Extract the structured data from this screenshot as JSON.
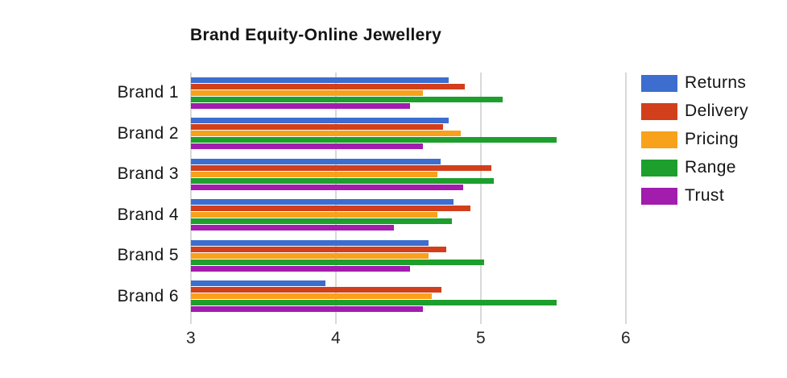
{
  "page": {
    "background": "#ffffff"
  },
  "chart_data": {
    "type": "bar",
    "orientation": "horizontal",
    "title": "Brand Equity-Online Jewellery",
    "xlabel": "",
    "ylabel": "",
    "xlim": [
      3,
      6
    ],
    "xticks": [
      "3",
      "4",
      "5",
      "6"
    ],
    "grid": "vertical",
    "legend_position": "right",
    "categories": [
      "Brand 1",
      "Brand 2",
      "Brand 3",
      "Brand 4",
      "Brand 5",
      "Brand 6"
    ],
    "series": [
      {
        "name": "Returns",
        "color": "#3D6ECF",
        "values": [
          4.78,
          4.78,
          4.72,
          4.81,
          4.64,
          3.93
        ]
      },
      {
        "name": "Delivery",
        "color": "#D23F1B",
        "values": [
          4.89,
          4.74,
          5.07,
          4.93,
          4.76,
          4.73
        ]
      },
      {
        "name": "Pricing",
        "color": "#F8A11B",
        "values": [
          4.6,
          4.86,
          4.7,
          4.7,
          4.64,
          4.66
        ]
      },
      {
        "name": "Range",
        "color": "#1D9F2D",
        "values": [
          5.15,
          5.52,
          5.09,
          4.8,
          5.02,
          5.52
        ]
      },
      {
        "name": "Trust",
        "color": "#A21CAE",
        "values": [
          4.51,
          4.6,
          4.88,
          4.4,
          4.51,
          4.6
        ]
      }
    ],
    "styles": {
      "grid_color": "#d9d9d9",
      "title_color": "#141414",
      "label_color": "#141414",
      "tick_color": "#262626"
    }
  }
}
